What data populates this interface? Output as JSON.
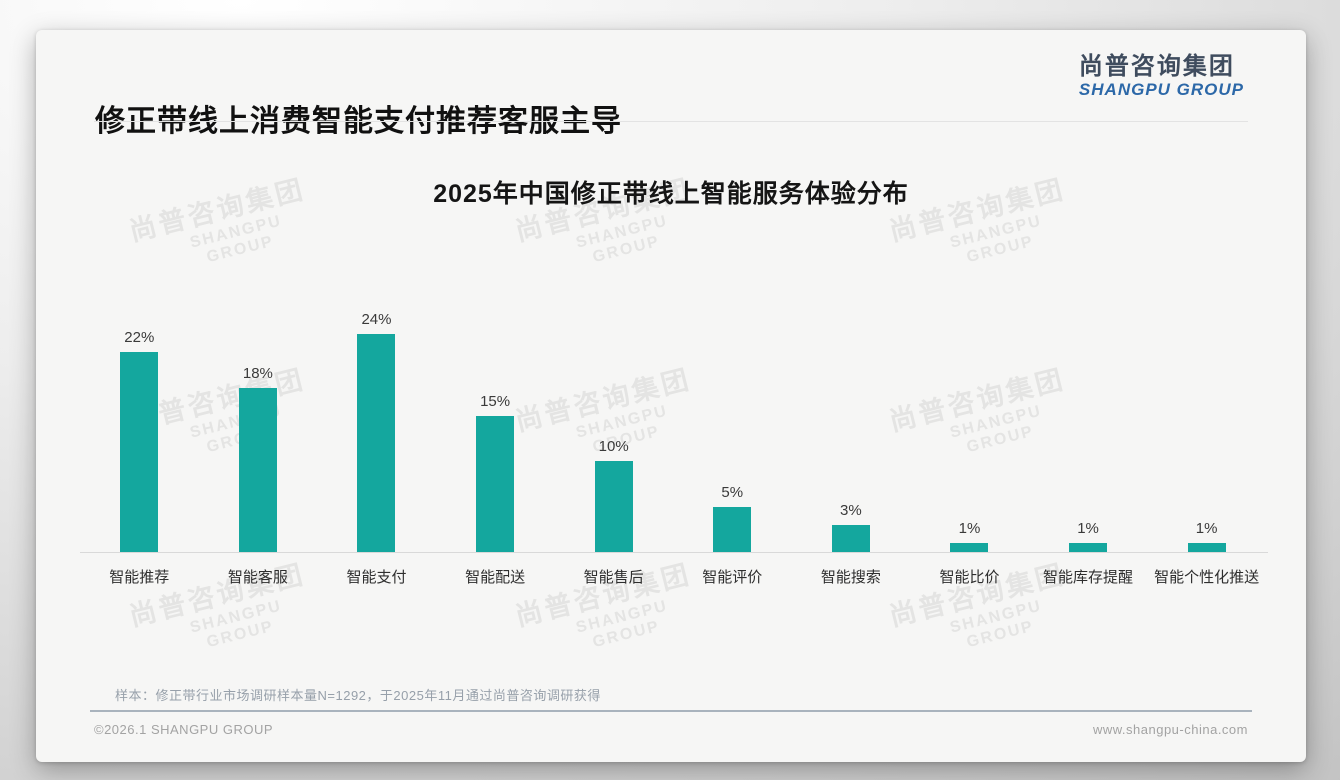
{
  "slide": {
    "title": "修正带线上消费智能支付推荐客服主导",
    "logo": {
      "cn": "尚普咨询集团",
      "en": "SHANGPU GROUP"
    },
    "watermark": {
      "cn": "尚普咨询集团",
      "en": "SHANGPU GROUP"
    },
    "sample_note": "样本：修正带行业市场调研样本量N=1292，于2025年11月通过尚普咨询调研获得",
    "copyright": "©2026.1 SHANGPU GROUP",
    "website": "www.shangpu-china.com"
  },
  "chart_data": {
    "type": "bar",
    "title": "2025年中国修正带线上智能服务体验分布",
    "categories": [
      "智能推荐",
      "智能客服",
      "智能支付",
      "智能配送",
      "智能售后",
      "智能评价",
      "智能搜索",
      "智能比价",
      "智能库存提醒",
      "智能个性化推送"
    ],
    "values": [
      22,
      18,
      24,
      15,
      10,
      5,
      3,
      1,
      1,
      1
    ],
    "value_labels": [
      "22%",
      "18%",
      "24%",
      "15%",
      "10%",
      "5%",
      "3%",
      "1%",
      "1%",
      "1%"
    ],
    "unit": "%",
    "bar_color": "#14a79e",
    "ylim": [
      0,
      26
    ],
    "grid": false,
    "legend": false,
    "baseline_color": "#d9d9d9"
  },
  "colors": {
    "accent_teal": "#14a79e",
    "logo_cn": "#3f4c5e",
    "logo_en": "#2c68a8"
  }
}
